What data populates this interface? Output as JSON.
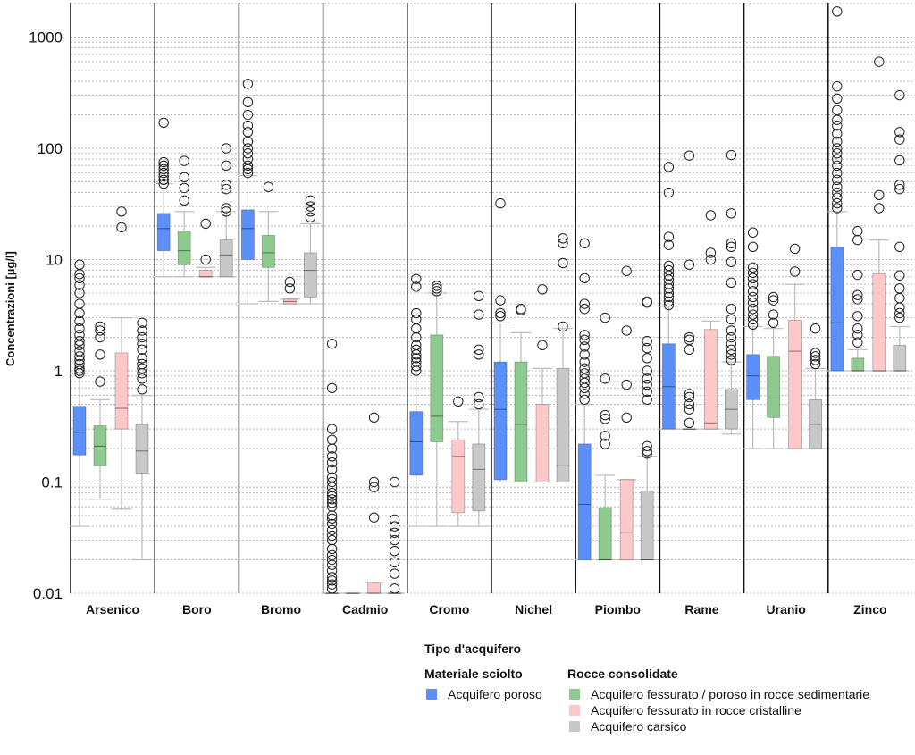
{
  "chart_data": {
    "type": "box",
    "title": "",
    "ylabel": "Concentrazioni [µg/l]",
    "yscale": "log",
    "ylim": [
      0.01,
      2000
    ],
    "yticks": [
      "0.01",
      "0.1",
      "1",
      "10",
      "100",
      "1000"
    ],
    "grid": "dotted minor log gridlines",
    "categories": [
      "Arsenico",
      "Boro",
      "Bromo",
      "Cadmio",
      "Cromo",
      "Nichel",
      "Piombo",
      "Rame",
      "Uranio",
      "Zinco"
    ],
    "series_colors": {
      "poroso": "#5b8ff9",
      "sedimentarie": "#8ec98f",
      "cristalline": "#ffc8c8",
      "carsico": "#c8c8c8"
    },
    "legend": {
      "title": "Tipo d'acquifero",
      "groups": [
        {
          "title": "Materiale sciolto",
          "items": [
            {
              "key": "poroso",
              "label": "Acquifero poroso"
            }
          ]
        },
        {
          "title": "Rocce consolidate",
          "items": [
            {
              "key": "sedimentarie",
              "label": "Acquifero fessurato / poroso in rocce sedimentarie"
            },
            {
              "key": "cristalline",
              "label": "Acquifero fessurato in rocce cristalline"
            },
            {
              "key": "carsico",
              "label": "Acquifero carsico"
            }
          ]
        }
      ]
    },
    "boxes": {
      "Arsenico": [
        {
          "series": "poroso",
          "whislo": 0.04,
          "q1": 0.175,
          "med": 0.28,
          "q3": 0.48,
          "whishi": 0.95,
          "fliers": [
            0.95,
            1.0,
            1.05,
            1.15,
            1.25,
            1.35,
            1.5,
            1.7,
            1.85,
            2.1,
            2.4,
            2.8,
            3.3,
            4.0,
            5.0,
            5.9,
            6.8,
            7.4,
            9.0
          ]
        },
        {
          "series": "sedimentarie",
          "whislo": 0.07,
          "q1": 0.14,
          "med": 0.21,
          "q3": 0.32,
          "whishi": 0.55,
          "fliers": [
            0.8,
            1.4,
            2.0,
            2.3,
            2.5
          ]
        },
        {
          "series": "cristalline",
          "whislo": 0.057,
          "q1": 0.3,
          "med": 0.46,
          "q3": 1.45,
          "whishi": 3.0,
          "fliers": [
            19.5,
            27.0
          ]
        },
        {
          "series": "carsico",
          "whislo": 0.02,
          "q1": 0.12,
          "med": 0.19,
          "q3": 0.33,
          "whishi": 0.6,
          "fliers": [
            0.68,
            0.85,
            0.95,
            1.05,
            1.15,
            1.3,
            1.55,
            1.75,
            2.0,
            2.3,
            2.7
          ]
        }
      ],
      "Boro": [
        {
          "series": "poroso",
          "whislo": 7.0,
          "q1": 12.0,
          "med": 19.0,
          "q3": 26.0,
          "whishi": 48.0,
          "fliers": [
            48,
            52,
            56,
            60,
            65,
            70,
            75,
            170
          ]
        },
        {
          "series": "sedimentarie",
          "whislo": 7.0,
          "q1": 9.0,
          "med": 12.0,
          "q3": 18.0,
          "whishi": 27.0,
          "fliers": [
            34,
            44,
            55,
            77
          ]
        },
        {
          "series": "cristalline",
          "whislo": 7.0,
          "q1": 7.0,
          "med": 7.0,
          "q3": 8.0,
          "whishi": 8.5,
          "fliers": [
            10.0,
            21.0
          ]
        },
        {
          "series": "carsico",
          "whislo": 7.0,
          "q1": 7.0,
          "med": 11.0,
          "q3": 15.0,
          "whishi": 27.0,
          "fliers": [
            27,
            29,
            43,
            47,
            70,
            100
          ]
        }
      ],
      "Bromo": [
        {
          "series": "poroso",
          "whislo": 4.0,
          "q1": 10.0,
          "med": 19.0,
          "q3": 28.0,
          "whishi": 57.0,
          "fliers": [
            60,
            65,
            70,
            80,
            90,
            100,
            115,
            140,
            160,
            200,
            260,
            380
          ]
        },
        {
          "series": "sedimentarie",
          "whislo": 4.2,
          "q1": 8.5,
          "med": 11.5,
          "q3": 16.5,
          "whishi": 27.0,
          "fliers": [
            45
          ]
        },
        {
          "series": "cristalline",
          "whislo": 4.0,
          "q1": 4.0,
          "med": 4.2,
          "q3": 4.4,
          "whishi": 4.4,
          "fliers": [
            5.5,
            6.3
          ]
        },
        {
          "series": "carsico",
          "whislo": 4.0,
          "q1": 4.6,
          "med": 8.0,
          "q3": 11.5,
          "whishi": 21.0,
          "fliers": [
            24,
            27,
            30,
            34
          ]
        }
      ],
      "Cadmio": [
        {
          "series": "poroso",
          "whislo": 0.01,
          "q1": 0.01,
          "med": 0.01,
          "q3": 0.01,
          "whishi": 0.01,
          "fliers": [
            0.011,
            0.012,
            0.013,
            0.014,
            0.016,
            0.018,
            0.02,
            0.022,
            0.025,
            0.03,
            0.033,
            0.037,
            0.042,
            0.047,
            0.05,
            0.06,
            0.065,
            0.07,
            0.075,
            0.08,
            0.09,
            0.1,
            0.11,
            0.13,
            0.15,
            0.17,
            0.2,
            0.24,
            0.3,
            0.7,
            1.75
          ]
        },
        {
          "series": "sedimentarie",
          "whislo": 0.01,
          "q1": 0.01,
          "med": 0.01,
          "q3": 0.01,
          "whishi": 0.01,
          "fliers": []
        },
        {
          "series": "cristalline",
          "whislo": 0.01,
          "q1": 0.01,
          "med": 0.01,
          "q3": 0.0125,
          "whishi": 0.0125,
          "fliers": [
            0.048,
            0.09,
            0.1,
            0.38
          ]
        },
        {
          "series": "carsico",
          "whislo": 0.01,
          "q1": 0.01,
          "med": 0.01,
          "q3": 0.01,
          "whishi": 0.01,
          "fliers": [
            0.011,
            0.015,
            0.019,
            0.024,
            0.03,
            0.035,
            0.04,
            0.046,
            0.1
          ]
        }
      ],
      "Cromo": [
        {
          "series": "poroso",
          "whislo": 0.04,
          "q1": 0.115,
          "med": 0.23,
          "q3": 0.43,
          "whishi": 0.95,
          "fliers": [
            1.0,
            1.1,
            1.2,
            1.3,
            1.4,
            1.55,
            1.7,
            2.0,
            2.4,
            2.9,
            3.3,
            5.7,
            6.7
          ]
        },
        {
          "series": "sedimentarie",
          "whislo": 0.04,
          "q1": 0.23,
          "med": 0.39,
          "q3": 2.1,
          "whishi": 5.0,
          "fliers": [
            5.2,
            5.5,
            5.8
          ]
        },
        {
          "series": "cristalline",
          "whislo": 0.04,
          "q1": 0.053,
          "med": 0.17,
          "q3": 0.24,
          "whishi": 0.35,
          "fliers": [
            0.53
          ]
        },
        {
          "series": "carsico",
          "whislo": 0.04,
          "q1": 0.055,
          "med": 0.13,
          "q3": 0.22,
          "whishi": 0.45,
          "fliers": [
            0.5,
            0.58,
            1.4,
            1.55,
            3.2,
            4.7
          ]
        }
      ],
      "Nichel": [
        {
          "series": "poroso",
          "whislo": 0.1,
          "q1": 0.105,
          "med": 0.45,
          "q3": 1.2,
          "whishi": 2.7,
          "fliers": [
            3.1,
            3.3,
            4.3,
            32
          ]
        },
        {
          "series": "sedimentarie",
          "whislo": 0.1,
          "q1": 0.1,
          "med": 0.33,
          "q3": 1.2,
          "whishi": 2.2,
          "fliers": [
            3.5,
            3.6
          ]
        },
        {
          "series": "cristalline",
          "whislo": 0.1,
          "q1": 0.1,
          "med": 0.1,
          "q3": 0.5,
          "whishi": 1.05,
          "fliers": [
            1.7,
            5.4
          ]
        },
        {
          "series": "carsico",
          "whislo": 0.1,
          "q1": 0.1,
          "med": 0.14,
          "q3": 1.05,
          "whishi": 2.4,
          "fliers": [
            2.5,
            9.3,
            14.0,
            15.5
          ]
        }
      ],
      "Piombo": [
        {
          "series": "poroso",
          "whislo": 0.02,
          "q1": 0.02,
          "med": 0.063,
          "q3": 0.22,
          "whishi": 0.5,
          "fliers": [
            0.55,
            0.62,
            0.7,
            0.78,
            0.85,
            0.95,
            1.05,
            1.2,
            1.4,
            1.65,
            1.9,
            2.1,
            3.6,
            4.0,
            6.8,
            14
          ]
        },
        {
          "series": "sedimentarie",
          "whislo": 0.02,
          "q1": 0.02,
          "med": 0.02,
          "q3": 0.059,
          "whishi": 0.115,
          "fliers": [
            0.22,
            0.26,
            0.37,
            0.4,
            0.85,
            3.0
          ]
        },
        {
          "series": "cristalline",
          "whislo": 0.02,
          "q1": 0.02,
          "med": 0.035,
          "q3": 0.105,
          "whishi": 0.105,
          "fliers": [
            0.38,
            0.75,
            2.3,
            7.9
          ]
        },
        {
          "series": "carsico",
          "whislo": 0.02,
          "q1": 0.02,
          "med": 0.02,
          "q3": 0.083,
          "whishi": 0.17,
          "fliers": [
            0.18,
            0.19,
            0.21,
            0.55,
            0.65,
            0.75,
            0.85,
            1.0,
            1.3,
            1.6,
            1.85,
            4.1,
            4.2
          ]
        }
      ],
      "Rame": [
        {
          "series": "poroso",
          "whislo": 0.3,
          "q1": 0.3,
          "med": 0.72,
          "q3": 1.75,
          "whishi": 3.8,
          "fliers": [
            3.9,
            4.2,
            4.6,
            5.0,
            5.5,
            6.0,
            6.6,
            7.2,
            8.0,
            8.8,
            13.5,
            16,
            40,
            68
          ]
        },
        {
          "series": "sedimentarie",
          "whislo": 0.3,
          "q1": 0.3,
          "med": 0.3,
          "q3": 0.3,
          "whishi": 0.3,
          "fliers": [
            0.34,
            0.45,
            0.5,
            0.58,
            0.62,
            1.55,
            1.9,
            2.0,
            9.0,
            86
          ]
        },
        {
          "series": "cristalline",
          "whislo": 0.3,
          "q1": 0.3,
          "med": 0.34,
          "q3": 2.35,
          "whishi": 2.8,
          "fliers": [
            10,
            11.5,
            25
          ]
        },
        {
          "series": "carsico",
          "whislo": 0.27,
          "q1": 0.3,
          "med": 0.45,
          "q3": 0.68,
          "whishi": 1.2,
          "fliers": [
            1.25,
            1.4,
            1.55,
            1.75,
            2.0,
            2.3,
            2.9,
            3.6,
            6.2,
            9.5,
            13,
            14,
            26,
            87
          ]
        }
      ],
      "Uranio": [
        {
          "series": "poroso",
          "whislo": 0.2,
          "q1": 0.55,
          "med": 0.9,
          "q3": 1.4,
          "whishi": 2.5,
          "fliers": [
            2.6,
            2.9,
            3.2,
            3.6,
            4.1,
            4.6,
            5.2,
            6.0,
            6.8,
            7.6,
            8.5,
            13,
            17.5
          ]
        },
        {
          "series": "sedimentarie",
          "whislo": 0.2,
          "q1": 0.38,
          "med": 0.57,
          "q3": 1.35,
          "whishi": 2.4,
          "fliers": [
            2.7,
            3.2,
            4.3,
            4.6
          ]
        },
        {
          "series": "cristalline",
          "whislo": 0.2,
          "q1": 0.2,
          "med": 1.5,
          "q3": 2.85,
          "whishi": 6.0,
          "fliers": [
            7.8,
            12.5
          ]
        },
        {
          "series": "carsico",
          "whislo": 0.2,
          "q1": 0.2,
          "med": 0.33,
          "q3": 0.55,
          "whishi": 1.05,
          "fliers": [
            1.15,
            1.25,
            1.35,
            1.45,
            2.4
          ]
        }
      ],
      "Zinco": [
        {
          "series": "poroso",
          "whislo": 1.0,
          "q1": 1.0,
          "med": 2.7,
          "q3": 13.0,
          "whishi": 27.0,
          "fliers": [
            29,
            32,
            36,
            40,
            45,
            52,
            60,
            70,
            80,
            90,
            100,
            115,
            135,
            160,
            180,
            220,
            280,
            360,
            1700
          ]
        },
        {
          "series": "sedimentarie",
          "whislo": 1.0,
          "q1": 1.0,
          "med": 1.0,
          "q3": 1.3,
          "whishi": 1.55,
          "fliers": [
            1.8,
            2.1,
            2.4,
            3.1,
            4.4,
            4.8,
            7.3,
            15,
            18
          ]
        },
        {
          "series": "cristalline",
          "whislo": 1.0,
          "q1": 1.0,
          "med": 1.0,
          "q3": 7.5,
          "whishi": 15.0,
          "fliers": [
            29,
            38,
            600
          ]
        },
        {
          "series": "carsico",
          "whislo": 1.0,
          "q1": 1.0,
          "med": 1.0,
          "q3": 1.7,
          "whishi": 2.5,
          "fliers": [
            3.0,
            3.3,
            3.7,
            4.5,
            5.5,
            7.2,
            13,
            43,
            47,
            78,
            120,
            140,
            300
          ]
        }
      ]
    }
  }
}
